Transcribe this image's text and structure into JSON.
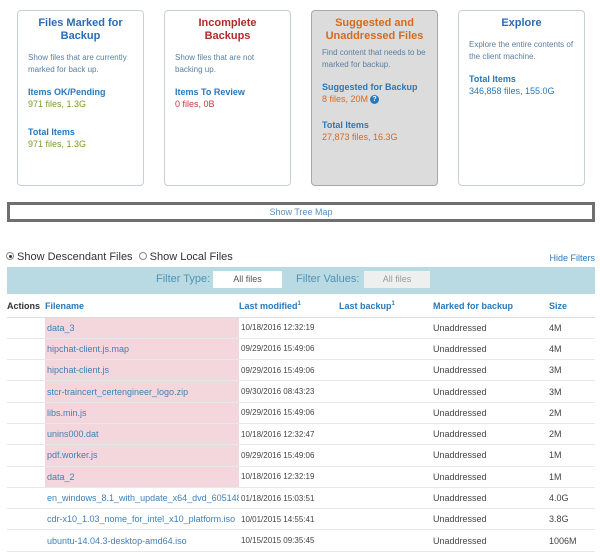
{
  "cards": [
    {
      "title": "Files Marked for Backup",
      "title_color": "#2a6db5",
      "desc": "Show files that are currently marked for back up.",
      "label1": "Items OK/Pending",
      "value1": "971 files, 1.3G",
      "label2": "Total Items",
      "value2": "971 files, 1.3G"
    },
    {
      "title": "Incomplete Backups",
      "title_color": "#b22a2a",
      "desc": "Show files that are not backing up.",
      "label1": "Items To Review",
      "value1": "0 files, 0B"
    },
    {
      "title": "Suggested and Unaddressed Files",
      "title_color": "#d66a1e",
      "desc": "Find content that needs to be marked for backup.",
      "label1": "Suggested for Backup",
      "value1": "8 files, 20M",
      "label2": "Total Items",
      "value2": "27,873 files, 16.3G"
    },
    {
      "title": "Explore",
      "title_color": "#2a6db5",
      "desc": "Explore the entire contents of the client machine.",
      "label1": "Total Items",
      "value1": "346,858 files, 155.0G"
    }
  ],
  "treemap_label": "Show Tree Map",
  "options": {
    "descendant": "Show Descendant Files",
    "local": "Show Local Files"
  },
  "hide_filters": "Hide Filters",
  "filters": {
    "type_label": "Filter Type:",
    "type_value": "All files",
    "values_label": "Filter Values:",
    "values_value": "All files"
  },
  "columns": {
    "actions": "Actions",
    "filename": "Filename",
    "last_modified": "Last modified",
    "last_backup": "Last backup",
    "marked": "Marked for backup",
    "size": "Size",
    "sup": "1"
  },
  "rows": [
    {
      "name": "data_3",
      "modified": "10/18/2016 12:32:19",
      "backup": "",
      "marked": "Unaddressed",
      "size": "4M"
    },
    {
      "name": "hipchat-client.js.map",
      "modified": "09/29/2016 15:49:06",
      "backup": "",
      "marked": "Unaddressed",
      "size": "4M"
    },
    {
      "name": "hipchat-client.js",
      "modified": "09/29/2016 15:49:06",
      "backup": "",
      "marked": "Unaddressed",
      "size": "3M"
    },
    {
      "name": "stcr-traincert_certengineer_logo.zip",
      "modified": "09/30/2016 08:43:23",
      "backup": "",
      "marked": "Unaddressed",
      "size": "3M"
    },
    {
      "name": "libs.min.js",
      "modified": "09/29/2016 15:49:06",
      "backup": "",
      "marked": "Unaddressed",
      "size": "2M"
    },
    {
      "name": "unins000.dat",
      "modified": "10/18/2016 12:32:47",
      "backup": "",
      "marked": "Unaddressed",
      "size": "2M"
    },
    {
      "name": "pdf.worker.js",
      "modified": "09/29/2016 15:49:06",
      "backup": "",
      "marked": "Unaddressed",
      "size": "1M"
    },
    {
      "name": "data_2",
      "modified": "10/18/2016 12:32:19",
      "backup": "",
      "marked": "Unaddressed",
      "size": "1M"
    },
    {
      "name": "en_windows_8.1_with_update_x64_dvd_6051480.iso",
      "modified": "01/18/2016 15:03:51",
      "backup": "",
      "marked": "Unaddressed",
      "size": "4.0G"
    },
    {
      "name": "cdr-x10_1.03_nome_for_intel_x10_platform.iso",
      "modified": "10/01/2015 14:55:41",
      "backup": "",
      "marked": "Unaddressed",
      "size": "3.8G"
    },
    {
      "name": "ubuntu-14.04.3-desktop-amd64.iso",
      "modified": "10/15/2015 09:35:45",
      "backup": "",
      "marked": "Unaddressed",
      "size": "1006M"
    }
  ]
}
